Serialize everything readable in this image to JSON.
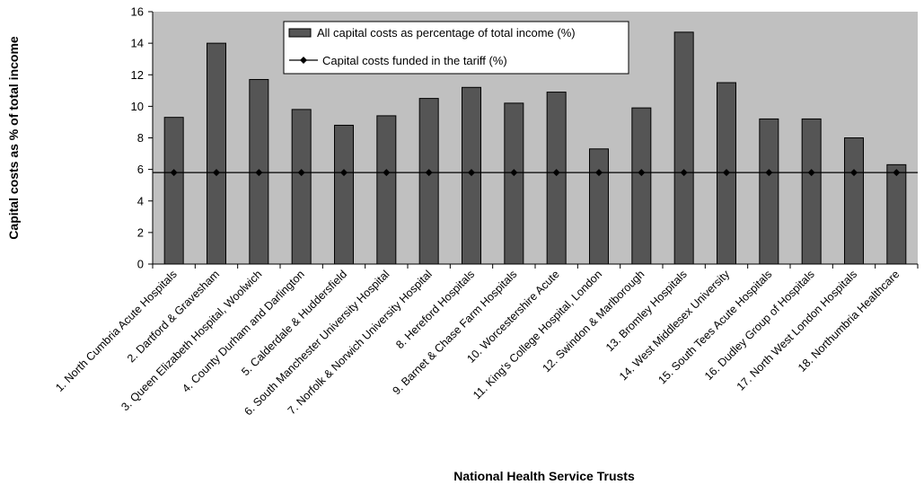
{
  "chart_data": {
    "type": "bar",
    "title": "",
    "xlabel": "National Health Service Trusts",
    "ylabel": "Capital costs as % of total income",
    "ylim": [
      0,
      16
    ],
    "yticks": [
      0,
      2,
      4,
      6,
      8,
      10,
      12,
      14,
      16
    ],
    "grid": false,
    "legend_position": "top-center",
    "colors": {
      "plot_bg": "#c0c0c0",
      "bar": "#555555",
      "line": "#000000"
    },
    "categories": [
      "1. North Cumbria Acute Hospitals",
      "2. Dartford & Gravesham",
      "3. Queen Elizabeth Hospital, Woolwich",
      "4. County Durham and Darlington",
      "5. Calderdale & Huddersfield",
      "6. South Manchester University Hospital",
      "7. Norfolk & Norwich University Hospital",
      "8. Hereford Hospitals",
      "9. Barnet & Chase Farm Hospitals",
      "10. Worcestershire Acute",
      "11. King's College Hospital, London",
      "12. Swindon & Marlborough",
      "13. Bromley Hospitals",
      "14. West  Middlesex University",
      "15. South Tees Acute Hospitals",
      "16. Dudley Group of Hospitals",
      "17. North West London Hospitals",
      "18. Northumbria Healthcare"
    ],
    "series": [
      {
        "name": "All capital costs as percentage of total income (%)",
        "type": "bar",
        "values": [
          9.3,
          14.0,
          11.7,
          9.8,
          8.8,
          9.4,
          10.5,
          11.2,
          10.2,
          10.9,
          7.3,
          9.9,
          14.7,
          11.5,
          9.2,
          9.2,
          8.0,
          6.3
        ]
      },
      {
        "name": "Capital costs funded in the tariff (%)",
        "type": "line",
        "marker": "diamond",
        "values": [
          5.8,
          5.8,
          5.8,
          5.8,
          5.8,
          5.8,
          5.8,
          5.8,
          5.8,
          5.8,
          5.8,
          5.8,
          5.8,
          5.8,
          5.8,
          5.8,
          5.8,
          5.8
        ]
      }
    ]
  }
}
